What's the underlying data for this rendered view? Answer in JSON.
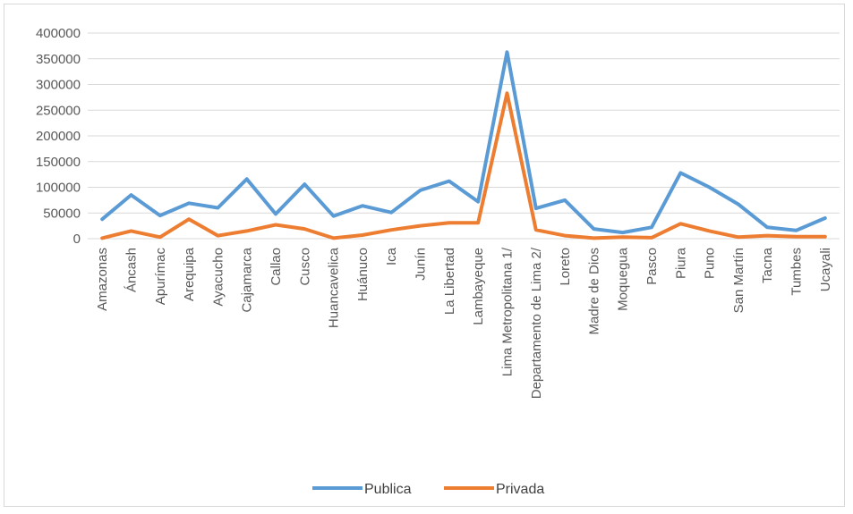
{
  "chart_data": {
    "type": "line",
    "title": "",
    "xlabel": "",
    "ylabel": "",
    "ylim": [
      0,
      400000
    ],
    "yticks": [
      0,
      50000,
      100000,
      150000,
      200000,
      250000,
      300000,
      350000,
      400000
    ],
    "ytick_labels": [
      "0",
      "50000",
      "100000",
      "150000",
      "200000",
      "250000",
      "300000",
      "350000",
      "400000"
    ],
    "grid": "horizontal",
    "legend_position": "bottom",
    "categories": [
      "Amazonas",
      "Áncash",
      "Apurímac",
      "Arequipa",
      "Ayacucho",
      "Cajamarca",
      "Callao",
      "Cusco",
      "Huancavelica",
      "Huánuco",
      "Ica",
      "Junín",
      "La Libertad",
      "Lambayeque",
      "Lima Metropolitana 1/",
      "Departamento de Lima 2/",
      "Loreto",
      "Madre de Dios",
      "Moquegua",
      "Pasco",
      "Piura",
      "Puno",
      "San Martín",
      "Tacna",
      "Tumbes",
      "Ucayali"
    ],
    "series": [
      {
        "name": "Publica",
        "color": "#5b9bd5",
        "values": [
          38000,
          85000,
          45000,
          69000,
          60000,
          116000,
          48000,
          106000,
          44000,
          64000,
          51000,
          94000,
          112000,
          72000,
          363000,
          59000,
          75000,
          19000,
          12000,
          22000,
          128000,
          100000,
          67000,
          22000,
          16000,
          40000
        ]
      },
      {
        "name": "Privada",
        "color": "#ed7d31",
        "values": [
          1000,
          15000,
          3000,
          38000,
          6000,
          15000,
          27000,
          19000,
          1000,
          7000,
          17000,
          25000,
          31000,
          31000,
          283000,
          17000,
          6000,
          1000,
          3000,
          2000,
          29000,
          15000,
          3000,
          6000,
          4000,
          4000
        ]
      }
    ]
  }
}
